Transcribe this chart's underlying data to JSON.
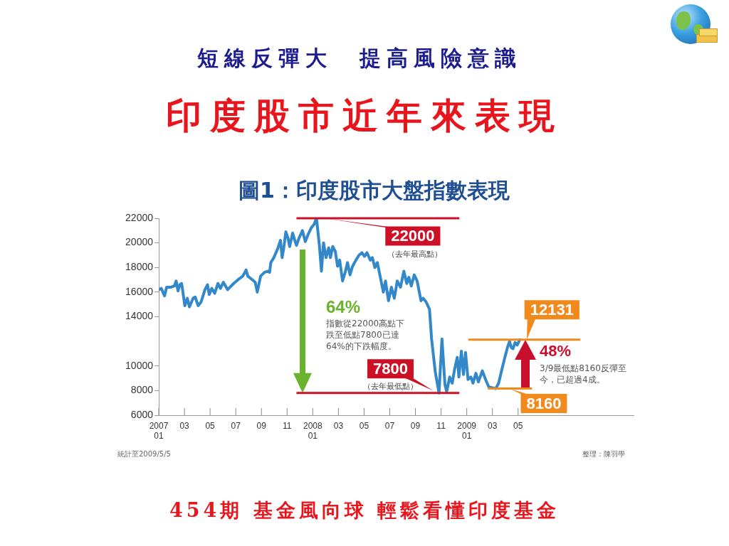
{
  "chart_data": {
    "type": "line",
    "title": "印度股市近年來表現",
    "subtitle": "短線反彈大　提高風險意識",
    "annotations": [
      "圖1：印度股市大盤指數表現",
      "（去年最高點）",
      "（去年最低點）",
      "64%",
      "指數從22000高點下跌至低點7800已達64%的下跌幅度。",
      "48%",
      "3/9最低點8160反彈至今，已超過4成。",
      "統計至2009/5/5",
      "整理：陳羽學",
      "454期 基金風向球 輕鬆看懂印度基金"
    ],
    "x": [
      "2007-01-01",
      "2007-01-07",
      "2007-01-15",
      "2007-01-20",
      "2007-01-31",
      "2007-02-07",
      "2007-02-11",
      "2007-02-15",
      "2007-02-19",
      "2007-02-23",
      "2007-03-02",
      "2007-03-08",
      "2007-03-13",
      "2007-03-22",
      "2007-03-27",
      "2007-04-03",
      "2007-04-10",
      "2007-04-19",
      "2007-04-25",
      "2007-04-29",
      "2007-05-05",
      "2007-05-12",
      "2007-05-20",
      "2007-05-26",
      "2007-06-02",
      "2007-06-12",
      "2007-06-26",
      "2007-07-10",
      "2007-07-18",
      "2007-07-26",
      "2007-07-30",
      "2007-08-10",
      "2007-08-17",
      "2007-08-22",
      "2007-08-30",
      "2007-09-08",
      "2007-09-16",
      "2007-09-20",
      "2007-09-23",
      "2007-09-30",
      "2007-10-09",
      "2007-10-16",
      "2007-10-20",
      "2007-10-24",
      "2007-10-29",
      "2007-11-03",
      "2007-11-07",
      "2007-11-14",
      "2007-11-19",
      "2007-11-23",
      "2007-11-29",
      "2007-12-07",
      "2007-12-14",
      "2007-12-21",
      "2007-12-28",
      "2008-01-04",
      "2008-01-10",
      "2008-01-17",
      "2008-01-22",
      "2008-01-27",
      "2008-02-02",
      "2008-02-08",
      "2008-02-12",
      "2008-02-17",
      "2008-02-23",
      "2008-02-28",
      "2008-03-04",
      "2008-03-11",
      "2008-03-18",
      "2008-03-23",
      "2008-03-29",
      "2008-04-04",
      "2008-04-12",
      "2008-04-19",
      "2008-04-26",
      "2008-05-02",
      "2008-05-08",
      "2008-05-16",
      "2008-05-21",
      "2008-05-27",
      "2008-06-02",
      "2008-06-09",
      "2008-06-16",
      "2008-06-21",
      "2008-06-28",
      "2008-07-05",
      "2008-07-12",
      "2008-07-19",
      "2008-07-27",
      "2008-08-04",
      "2008-08-11",
      "2008-08-16",
      "2008-08-22",
      "2008-08-29",
      "2008-09-05",
      "2008-09-14",
      "2008-09-19",
      "2008-09-26",
      "2008-10-04",
      "2008-10-09",
      "2008-10-18",
      "2008-10-27",
      "2008-11-03",
      "2008-11-10",
      "2008-11-14",
      "2008-11-21",
      "2008-11-27",
      "2008-12-03",
      "2008-12-09",
      "2008-12-13",
      "2008-12-19",
      "2008-12-24",
      "2008-12-29",
      "2009-01-04",
      "2009-01-11",
      "2009-01-16",
      "2009-01-23",
      "2009-01-29",
      "2009-02-07",
      "2009-02-14",
      "2009-02-21",
      "2009-03-09",
      "2009-03-16",
      "2009-03-23",
      "2009-03-31",
      "2009-04-07",
      "2009-04-11",
      "2009-04-15",
      "2009-04-19",
      "2009-04-24",
      "2009-04-29",
      "2009-05-05"
    ],
    "values": [
      16200,
      16300,
      15700,
      16400,
      16400,
      16500,
      16900,
      16100,
      16600,
      16700,
      14900,
      15500,
      14800,
      15500,
      15600,
      14900,
      15200,
      16200,
      16600,
      15800,
      16300,
      15900,
      16700,
      16300,
      16800,
      16200,
      16700,
      17100,
      17300,
      17800,
      17300,
      17000,
      16800,
      16000,
      17300,
      17600,
      17700,
      17600,
      18400,
      18800,
      19500,
      20200,
      18800,
      19600,
      20900,
      20400,
      19700,
      20800,
      20200,
      19800,
      20400,
      21000,
      20100,
      20700,
      21200,
      21500,
      22000,
      19800,
      17700,
      20000,
      18800,
      19600,
      18800,
      19700,
      19300,
      18100,
      18600,
      16900,
      17700,
      18400,
      17400,
      18100,
      18600,
      19000,
      19200,
      18900,
      19200,
      18600,
      18800,
      18000,
      18400,
      17200,
      16000,
      16900,
      15300,
      16400,
      15500,
      16900,
      16400,
      17700,
      16700,
      17200,
      16500,
      17400,
      16900,
      15300,
      15500,
      15200,
      14600,
      12200,
      9500,
      7800,
      12200,
      8500,
      7900,
      9100,
      8600,
      9800,
      10700,
      9100,
      11200,
      9300,
      11100,
      8900,
      9100,
      8600,
      9400,
      8700,
      9600,
      8900,
      8300,
      8160,
      8600,
      9600,
      10700,
      11600,
      12000,
      11500,
      11400,
      11900,
      11700,
      12131
    ],
    "color": "#3288c8",
    "xlim": [
      "2007-01",
      "2010-02"
    ],
    "xticks": [
      {
        "value": "2007-01",
        "label": "2007\n01"
      },
      {
        "value": "2007-03",
        "label": "03"
      },
      {
        "value": "2007-05",
        "label": "05"
      },
      {
        "value": "2007-07",
        "label": "07"
      },
      {
        "value": "2007-09",
        "label": "09"
      },
      {
        "value": "2007-11",
        "label": "11"
      },
      {
        "value": "2008-01",
        "label": "2008\n01"
      },
      {
        "value": "2008-03",
        "label": "03"
      },
      {
        "value": "2008-05",
        "label": "05"
      },
      {
        "value": "2008-07",
        "label": "07"
      },
      {
        "value": "2008-09",
        "label": "09"
      },
      {
        "value": "2008-11",
        "label": "11"
      },
      {
        "value": "2009-01",
        "label": "2009\n01"
      },
      {
        "value": "2009-03",
        "label": "03"
      },
      {
        "value": "2009-05",
        "label": "05"
      }
    ],
    "ylim": [
      6000,
      22000
    ],
    "yticks": [
      6000,
      8000,
      10000,
      14000,
      16000,
      18000,
      20000,
      22000
    ],
    "ref_lines": [
      {
        "axis": "y",
        "value": 22000,
        "label": "22000",
        "color": "#cc1126"
      },
      {
        "axis": "y",
        "value": 7800,
        "label": "7800",
        "color": "#cc1126"
      },
      {
        "axis": "y",
        "value": 12131,
        "label": "12131",
        "color": "#f08a1c"
      },
      {
        "axis": "y",
        "value": 8160,
        "label": "8160",
        "color": "#f08a1c"
      }
    ]
  }
}
